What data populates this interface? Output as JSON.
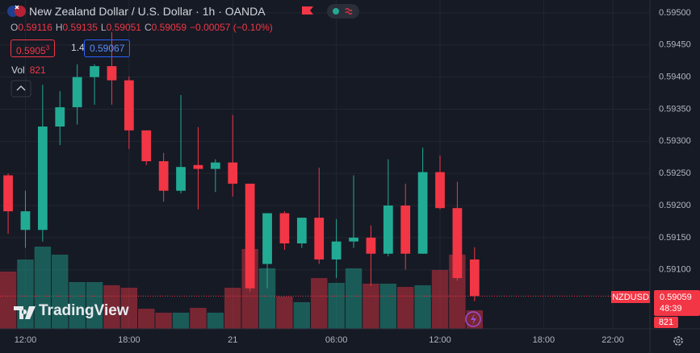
{
  "header": {
    "title": "New Zealand Dollar / U.S. Dollar · 1h · OANDA",
    "ohlc": [
      {
        "key": "O",
        "value": "0.59116"
      },
      {
        "key": "H",
        "value": "0.59135"
      },
      {
        "key": "L",
        "value": "0.59051"
      },
      {
        "key": "C",
        "value": "0.59059"
      }
    ],
    "change": "−0.00057 (−0.10%)",
    "bid": {
      "main": "0.5905",
      "fraction": "3"
    },
    "spread": "1.4",
    "ask": "0.59067",
    "volume": {
      "label": "Vol",
      "value": "821"
    }
  },
  "price_tag": {
    "symbol": "NZDUSD",
    "price": "0.59059",
    "countdown": "48:39"
  },
  "volume_tag": "821",
  "logo": "TradingView",
  "chart_data": {
    "type": "candlestick",
    "up_color": "#22ab94",
    "down_color": "#f23645",
    "open": [
      0.59247,
      0.59162,
      0.59162,
      0.59323,
      0.59353,
      0.594,
      0.59417,
      0.59395,
      0.59317,
      0.59269,
      0.59223,
      0.59263,
      0.59257,
      0.59267,
      0.59234,
      0.59109,
      0.59188,
      0.59141,
      0.59181,
      0.59116,
      0.59144,
      0.5915,
      0.59125,
      0.592,
      0.59125,
      0.59252,
      0.59196,
      0.59116
    ],
    "high": [
      0.5925,
      0.59223,
      0.59388,
      0.59378,
      0.5942,
      0.5942,
      0.5947,
      0.59401,
      0.59317,
      0.59282,
      0.59372,
      0.59322,
      0.59272,
      0.59341,
      0.59234,
      0.59188,
      0.59191,
      0.59181,
      0.59259,
      0.59179,
      0.59247,
      0.59169,
      0.59272,
      0.59234,
      0.5929,
      0.59278,
      0.59237,
      0.59135
    ],
    "low": [
      0.59156,
      0.59134,
      0.59144,
      0.59294,
      0.59326,
      0.59357,
      0.59357,
      0.59288,
      0.59263,
      0.59206,
      0.59219,
      0.59194,
      0.59221,
      0.59214,
      0.59066,
      0.59071,
      0.59131,
      0.59134,
      0.59109,
      0.59087,
      0.59134,
      0.59075,
      0.59121,
      0.591,
      0.59125,
      0.59194,
      0.59083,
      0.59051
    ],
    "close": [
      0.59191,
      0.59191,
      0.59323,
      0.59353,
      0.594,
      0.59417,
      0.59395,
      0.59317,
      0.59269,
      0.59223,
      0.5926,
      0.59257,
      0.59267,
      0.59234,
      0.59071,
      0.59188,
      0.59141,
      0.59181,
      0.59116,
      0.59144,
      0.5915,
      0.59125,
      0.592,
      0.59125,
      0.59252,
      0.59196,
      0.59087,
      0.59059
    ],
    "volume": [
      2535,
      3070,
      3640,
      3285,
      2070,
      2070,
      1930,
      1820,
      890,
      715,
      715,
      930,
      715,
      1820,
      3535,
      2680,
      1430,
      1180,
      2250,
      2035,
      2680,
      2000,
      2000,
      1855,
      1930,
      2605,
      3285,
      821
    ],
    "xlim": [
      -0.47,
      37.15
    ],
    "xticks": [
      {
        "value": 1,
        "label": "12:00"
      },
      {
        "value": 7,
        "label": "18:00"
      },
      {
        "value": 13,
        "label": "21"
      },
      {
        "value": 19,
        "label": "06:00"
      },
      {
        "value": 25,
        "label": "12:00"
      },
      {
        "value": 31,
        "label": "18:00"
      },
      {
        "value": 35,
        "label": "22:00"
      }
    ],
    "ylim": [
      0.59008,
      0.5952
    ],
    "yticks": [
      {
        "value": 0.595,
        "label": "0.59500"
      },
      {
        "value": 0.5945,
        "label": "0.59450"
      },
      {
        "value": 0.594,
        "label": "0.59400"
      },
      {
        "value": 0.5935,
        "label": "0.59350"
      },
      {
        "value": 0.593,
        "label": "0.59300"
      },
      {
        "value": 0.5925,
        "label": "0.59250"
      },
      {
        "value": 0.592,
        "label": "0.59200"
      },
      {
        "value": 0.5915,
        "label": "0.59150"
      },
      {
        "value": 0.591,
        "label": "0.59100"
      }
    ],
    "grid": true
  }
}
